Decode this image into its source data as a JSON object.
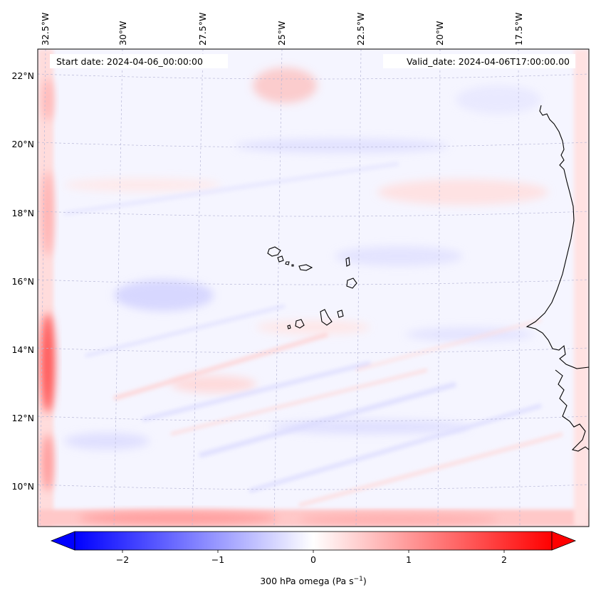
{
  "map": {
    "start_date_text": "Start date: 2024-04-06_00:00:00",
    "valid_date_text": "Valid_date: 2024-04-06T17:00:00.00",
    "lon_labels": [
      "32.5°W",
      "30°W",
      "27.5°W",
      "25°W",
      "22.5°W",
      "20°W",
      "17.5°W"
    ],
    "lat_labels": [
      "22°N",
      "20°N",
      "18°N",
      "16°N",
      "14°N",
      "12°N",
      "10°N"
    ],
    "field": "300 hPa omega",
    "colormap": "bwr",
    "value_range": [
      -2.5,
      2.5
    ],
    "gridlines": true,
    "features": [
      "Cape Verde islands",
      "West African coastline"
    ]
  },
  "colorbar": {
    "label_prefix": "300 hPa omega (Pa s",
    "label_exp": "−1",
    "label_suffix": ")",
    "ticks": [
      "−2",
      "−1",
      "0",
      "1",
      "2"
    ],
    "tick_values": [
      -2,
      -1,
      0,
      1,
      2
    ],
    "min": -2.5,
    "max": 2.5,
    "extend": "both"
  },
  "colors": {
    "negative": "#0000ff",
    "zero": "#ffffff",
    "positive": "#ff0000",
    "coastline": "#000000",
    "gridline": "#b8b8d8"
  }
}
